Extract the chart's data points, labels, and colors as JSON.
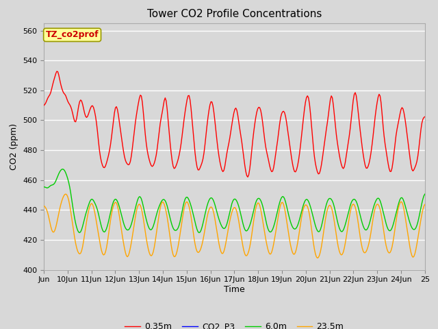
{
  "title": "Tower CO2 Profile Concentrations",
  "xlabel": "Time",
  "ylabel": "CO2 (ppm)",
  "ylim": [
    400,
    565
  ],
  "yticks": [
    400,
    420,
    440,
    460,
    480,
    500,
    520,
    540,
    560
  ],
  "series_colors": {
    "0.35m": "#ff0000",
    "CO2_P3": "#0000ff",
    "6.0m": "#00cc00",
    "23.5m": "#ffa500"
  },
  "annotation_text": "TZ_co2prof",
  "annotation_color": "#cc0000",
  "annotation_bg": "#ffff99",
  "bg_color": "#d8d8d8",
  "grid_color": "#ffffff",
  "x_start_day": 9,
  "x_end_day": 25,
  "x_tick_days": [
    9,
    10,
    11,
    12,
    13,
    14,
    15,
    16,
    17,
    18,
    19,
    20,
    21,
    22,
    23,
    24,
    25
  ],
  "x_tick_labels": [
    "Jun",
    "10Jun",
    "11Jun",
    "12Jun",
    "13Jun",
    "14Jun",
    "15Jun",
    "16Jun",
    "17Jun",
    "18Jun",
    "19Jun",
    "20Jun",
    "21Jun",
    "22Jun",
    "23Jun",
    "24Jun",
    "25"
  ],
  "line_width": 1.0
}
